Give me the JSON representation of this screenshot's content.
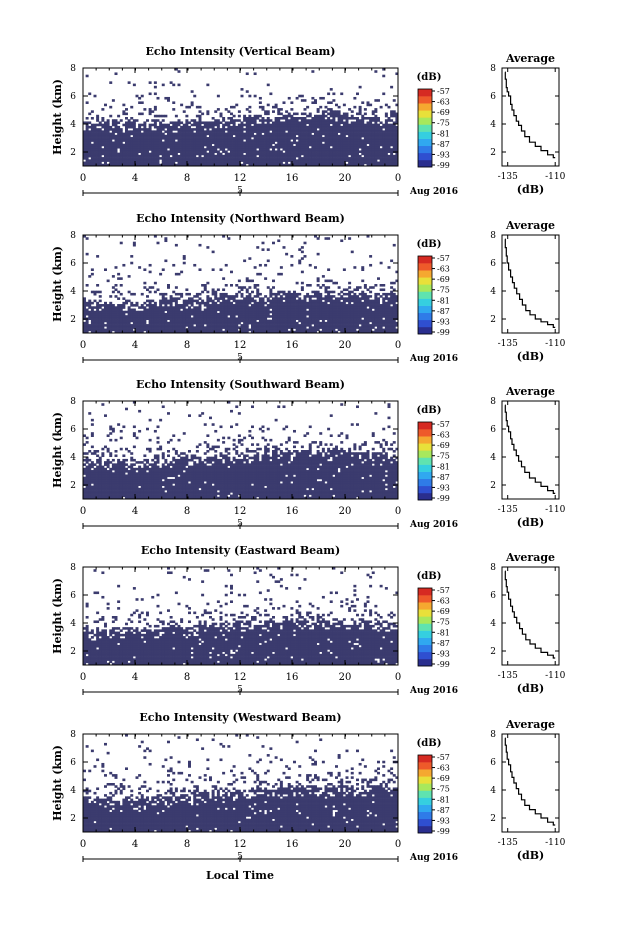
{
  "figure": {
    "xlabel": "Local Time",
    "colorbar_unit": "(dB)",
    "colorbar_ticks": [
      "-57",
      "-63",
      "-69",
      "-75",
      "-81",
      "-87",
      "-93",
      "-99"
    ],
    "colorbar_colors": [
      "#2a2e8e",
      "#2f4fd0",
      "#2f7be8",
      "#30a8f0",
      "#35cfe0",
      "#5fe3b0",
      "#a8e85c",
      "#e8e03a",
      "#f5a830",
      "#ee5a2a",
      "#d62a22"
    ],
    "fill_color": "#3b3b6e",
    "date_label": "Aug 2016",
    "date_tick": "5",
    "avg_title": "Average",
    "avg_xlabel": "(dB)"
  },
  "chart_data": [
    {
      "type": "heatmap",
      "title": "Echo Intensity (Vertical Beam)",
      "ylabel": "Height (km)",
      "x_ticks": [
        "0",
        "4",
        "8",
        "12",
        "16",
        "20",
        "0"
      ],
      "y_ticks": [
        "2",
        "4",
        "6",
        "8"
      ],
      "xlim": [
        0,
        24
      ],
      "ylim": [
        1,
        8
      ],
      "echo_top_km": [
        3.9,
        3.9,
        3.8,
        4.0,
        4.1,
        4.4,
        4.5,
        4.6,
        4.5,
        4.3
      ],
      "average_profile": {
        "type": "line",
        "x_ticks": [
          "-135",
          "-110"
        ],
        "y_ticks": [
          "2",
          "4",
          "6",
          "8"
        ],
        "xlim": [
          -138,
          -108
        ],
        "ylim": [
          1,
          8
        ],
        "x": [
          -136.5,
          -136,
          -135.5,
          -135,
          -134,
          -133,
          -132.5,
          -131,
          -130,
          -128.5,
          -127,
          -125,
          -122,
          -119,
          -116,
          -112,
          -110
        ],
        "y": [
          7.7,
          7.2,
          6.6,
          6.3,
          6.0,
          5.4,
          5.0,
          4.6,
          4.2,
          3.9,
          3.5,
          3.1,
          2.7,
          2.4,
          2.1,
          1.8,
          1.6
        ]
      }
    },
    {
      "type": "heatmap",
      "title": "Echo Intensity (Northward Beam)",
      "ylabel": "Height (km)",
      "x_ticks": [
        "0",
        "4",
        "8",
        "12",
        "16",
        "20",
        "0"
      ],
      "y_ticks": [
        "2",
        "4",
        "6",
        "8"
      ],
      "xlim": [
        0,
        24
      ],
      "ylim": [
        1,
        8
      ],
      "echo_top_km": [
        3.1,
        3.0,
        3.1,
        3.3,
        3.5,
        3.6,
        3.7,
        3.7,
        3.6,
        3.5
      ],
      "average_profile": {
        "type": "line",
        "x_ticks": [
          "-135",
          "-110"
        ],
        "y_ticks": [
          "2",
          "4",
          "6",
          "8"
        ],
        "xlim": [
          -138,
          -108
        ],
        "ylim": [
          1,
          8
        ],
        "x": [
          -136.5,
          -136,
          -135.5,
          -135,
          -134,
          -133,
          -132,
          -131,
          -129.5,
          -128,
          -126.5,
          -124.5,
          -122,
          -119,
          -116,
          -112,
          -110
        ],
        "y": [
          7.7,
          7.1,
          6.5,
          6.0,
          5.5,
          5.0,
          4.6,
          4.2,
          3.8,
          3.4,
          3.0,
          2.6,
          2.3,
          2.0,
          1.8,
          1.6,
          1.4
        ]
      }
    },
    {
      "type": "heatmap",
      "title": "Echo Intensity (Southward Beam)",
      "ylabel": "Height (km)",
      "x_ticks": [
        "0",
        "4",
        "8",
        "12",
        "16",
        "20",
        "0"
      ],
      "y_ticks": [
        "2",
        "4",
        "6",
        "8"
      ],
      "xlim": [
        0,
        24
      ],
      "ylim": [
        1,
        8
      ],
      "echo_top_km": [
        3.6,
        3.5,
        3.6,
        3.8,
        4.0,
        4.2,
        4.3,
        4.3,
        4.2,
        4.0
      ],
      "average_profile": {
        "type": "line",
        "x_ticks": [
          "-135",
          "-110"
        ],
        "y_ticks": [
          "2",
          "4",
          "6",
          "8"
        ],
        "xlim": [
          -138,
          -108
        ],
        "ylim": [
          1,
          8
        ],
        "x": [
          -136.5,
          -136,
          -135.5,
          -135,
          -134,
          -133,
          -132.5,
          -131,
          -130,
          -128.5,
          -127,
          -125,
          -122,
          -119,
          -116,
          -112,
          -110
        ],
        "y": [
          7.7,
          7.2,
          6.6,
          6.2,
          5.8,
          5.3,
          4.9,
          4.5,
          4.1,
          3.7,
          3.3,
          2.9,
          2.5,
          2.2,
          1.9,
          1.6,
          1.4
        ]
      }
    },
    {
      "type": "heatmap",
      "title": "Echo Intensity (Eastward Beam)",
      "ylabel": "Height (km)",
      "x_ticks": [
        "0",
        "4",
        "8",
        "12",
        "16",
        "20",
        "0"
      ],
      "y_ticks": [
        "2",
        "4",
        "6",
        "8"
      ],
      "xlim": [
        0,
        24
      ],
      "ylim": [
        1,
        8
      ],
      "echo_top_km": [
        3.3,
        3.3,
        3.4,
        3.6,
        3.8,
        3.9,
        4.0,
        4.0,
        3.9,
        3.8
      ],
      "average_profile": {
        "type": "line",
        "x_ticks": [
          "-135",
          "-110"
        ],
        "y_ticks": [
          "2",
          "4",
          "6",
          "8"
        ],
        "xlim": [
          -138,
          -108
        ],
        "ylim": [
          1,
          8
        ],
        "x": [
          -136.5,
          -136,
          -135.5,
          -135,
          -134,
          -133,
          -132,
          -131,
          -129.5,
          -128,
          -126.5,
          -124.5,
          -122,
          -119,
          -116,
          -112,
          -110
        ],
        "y": [
          7.7,
          7.1,
          6.6,
          6.2,
          5.7,
          5.2,
          4.8,
          4.4,
          4.0,
          3.6,
          3.2,
          2.8,
          2.5,
          2.2,
          1.9,
          1.7,
          1.5
        ]
      }
    },
    {
      "type": "heatmap",
      "title": "Echo Intensity (Westward Beam)",
      "ylabel": "Height (km)",
      "x_ticks": [
        "0",
        "4",
        "8",
        "12",
        "16",
        "20",
        "0"
      ],
      "y_ticks": [
        "2",
        "4",
        "6",
        "8"
      ],
      "xlim": [
        0,
        24
      ],
      "ylim": [
        1,
        8
      ],
      "echo_top_km": [
        3.2,
        3.2,
        3.3,
        3.5,
        3.7,
        3.9,
        4.0,
        4.1,
        4.0,
        3.9
      ],
      "average_profile": {
        "type": "line",
        "x_ticks": [
          "-135",
          "-110"
        ],
        "y_ticks": [
          "2",
          "4",
          "6",
          "8"
        ],
        "xlim": [
          -138,
          -108
        ],
        "ylim": [
          1,
          8
        ],
        "x": [
          -136.5,
          -136,
          -135.5,
          -135,
          -134,
          -133,
          -132.5,
          -131,
          -130,
          -128.5,
          -127,
          -125,
          -122,
          -119,
          -116,
          -112,
          -110
        ],
        "y": [
          7.7,
          7.2,
          6.7,
          6.2,
          5.8,
          5.3,
          4.9,
          4.5,
          4.1,
          3.7,
          3.3,
          2.9,
          2.6,
          2.3,
          2.0,
          1.7,
          1.5
        ]
      }
    }
  ]
}
